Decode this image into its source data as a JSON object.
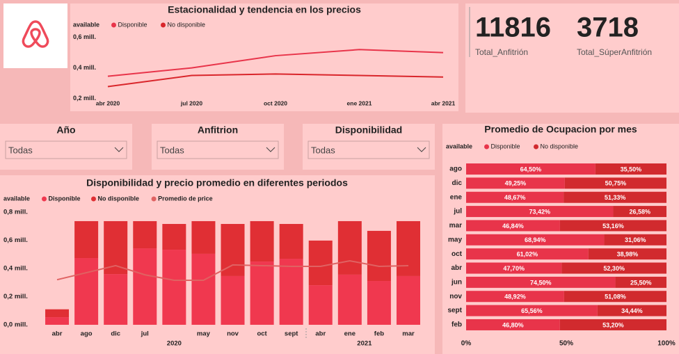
{
  "cards": [
    {
      "value": 11816,
      "label": "Total_Anfitrión"
    },
    {
      "value": 3718,
      "label": "Total_SúperAnfitrión"
    }
  ],
  "slicers": [
    {
      "title": "Año",
      "selection": "Todas"
    },
    {
      "title": "Anfitrion",
      "selection": "Todas"
    },
    {
      "title": "Disponibilidad",
      "selection": "Todas"
    }
  ],
  "chart_data": [
    {
      "type": "line",
      "title": "Estacionalidad y tendencia en los precios",
      "legend_title": "available",
      "categories": [
        "abr 2020",
        "jul 2020",
        "oct 2020",
        "ene 2021",
        "abr 2021"
      ],
      "series": [
        {
          "name": "Disponible",
          "color": "#e8344a",
          "values": [
            345000,
            400000,
            480000,
            520000,
            500000
          ]
        },
        {
          "name": "No disponible",
          "color": "#d9262b",
          "values": [
            277000,
            350000,
            360000,
            350000,
            340000
          ]
        }
      ],
      "ylim": [
        170000,
        640000
      ],
      "yticks": [
        {
          "value": 200000,
          "label": "0,2 mill."
        },
        {
          "value": 400000,
          "label": "0,4 mill."
        },
        {
          "value": 600000,
          "label": "0,6 mill."
        }
      ]
    },
    {
      "type": "bar",
      "stacked": true,
      "title": "Disponibilidad y precio promedio en diferentes periodos",
      "legend_title": "available",
      "categories": [
        "abr",
        "ago",
        "dic",
        "jul",
        null,
        "may",
        "nov",
        "oct",
        "sept",
        "abr",
        "ene",
        "feb",
        "mar"
      ],
      "groups": [
        {
          "label": "2020",
          "count": 9
        },
        {
          "label": "2021",
          "count": 4
        }
      ],
      "series": [
        {
          "name": "Disponible",
          "color": "#f0384f",
          "values": [
            54000,
            474000,
            360000,
            543000,
            533000,
            504000,
            346000,
            449000,
            469000,
            281000,
            356000,
            311000,
            346000
          ]
        },
        {
          "name": "No disponible",
          "color": "#e02f34",
          "values": [
            56000,
            262000,
            376000,
            193000,
            183000,
            232000,
            370000,
            287000,
            247000,
            317000,
            380000,
            356000,
            390000
          ]
        },
        {
          "name": "Promedio de price",
          "type": "line",
          "color": "#e06262",
          "values": [
            320000,
            370000,
            420000,
            355000,
            316000,
            316000,
            425000,
            420000,
            415000,
            415000,
            454000,
            415000,
            420000
          ]
        }
      ],
      "ylim": [
        0,
        800000
      ],
      "yticks": [
        {
          "value": 0,
          "label": "0,0 mill."
        },
        {
          "value": 200000,
          "label": "0,2 mill."
        },
        {
          "value": 400000,
          "label": "0,4 mill."
        },
        {
          "value": 600000,
          "label": "0,6 mill."
        },
        {
          "value": 800000,
          "label": "0,8 mill."
        }
      ]
    },
    {
      "type": "bar",
      "orientation": "horizontal",
      "stacked": true,
      "title": "Promedio de Ocupacion por mes",
      "legend_title": "available",
      "categories": [
        "ago",
        "dic",
        "ene",
        "jul",
        "mar",
        "may",
        "oct",
        "abr",
        "jun",
        "nov",
        "sept",
        "feb"
      ],
      "series": [
        {
          "name": "Disponible",
          "color": "#e8344a",
          "values": [
            64.5,
            49.25,
            48.67,
            73.42,
            46.84,
            68.94,
            61.02,
            47.7,
            74.5,
            48.92,
            65.56,
            46.8
          ],
          "value_labels": [
            "64,50%",
            "49,25%",
            "48,67%",
            "73,42%",
            "46,84%",
            "68,94%",
            "61,02%",
            "47,70%",
            "74,50%",
            "48,92%",
            "65,56%",
            "46,80%"
          ]
        },
        {
          "name": "No disponible",
          "color": "#d12a2e",
          "values": [
            35.5,
            50.75,
            51.33,
            26.58,
            53.16,
            31.06,
            38.98,
            52.3,
            25.5,
            51.08,
            34.44,
            53.2
          ],
          "value_labels": [
            "35,50%",
            "50,75%",
            "51,33%",
            "26,58%",
            "53,16%",
            "31,06%",
            "38,98%",
            "52,30%",
            "25,50%",
            "51,08%",
            "34,44%",
            "53,20%"
          ]
        }
      ],
      "xlim": [
        0,
        100
      ],
      "xticks": [
        {
          "value": 0,
          "label": "0%"
        },
        {
          "value": 50,
          "label": "50%"
        },
        {
          "value": 100,
          "label": "100%"
        }
      ]
    }
  ]
}
